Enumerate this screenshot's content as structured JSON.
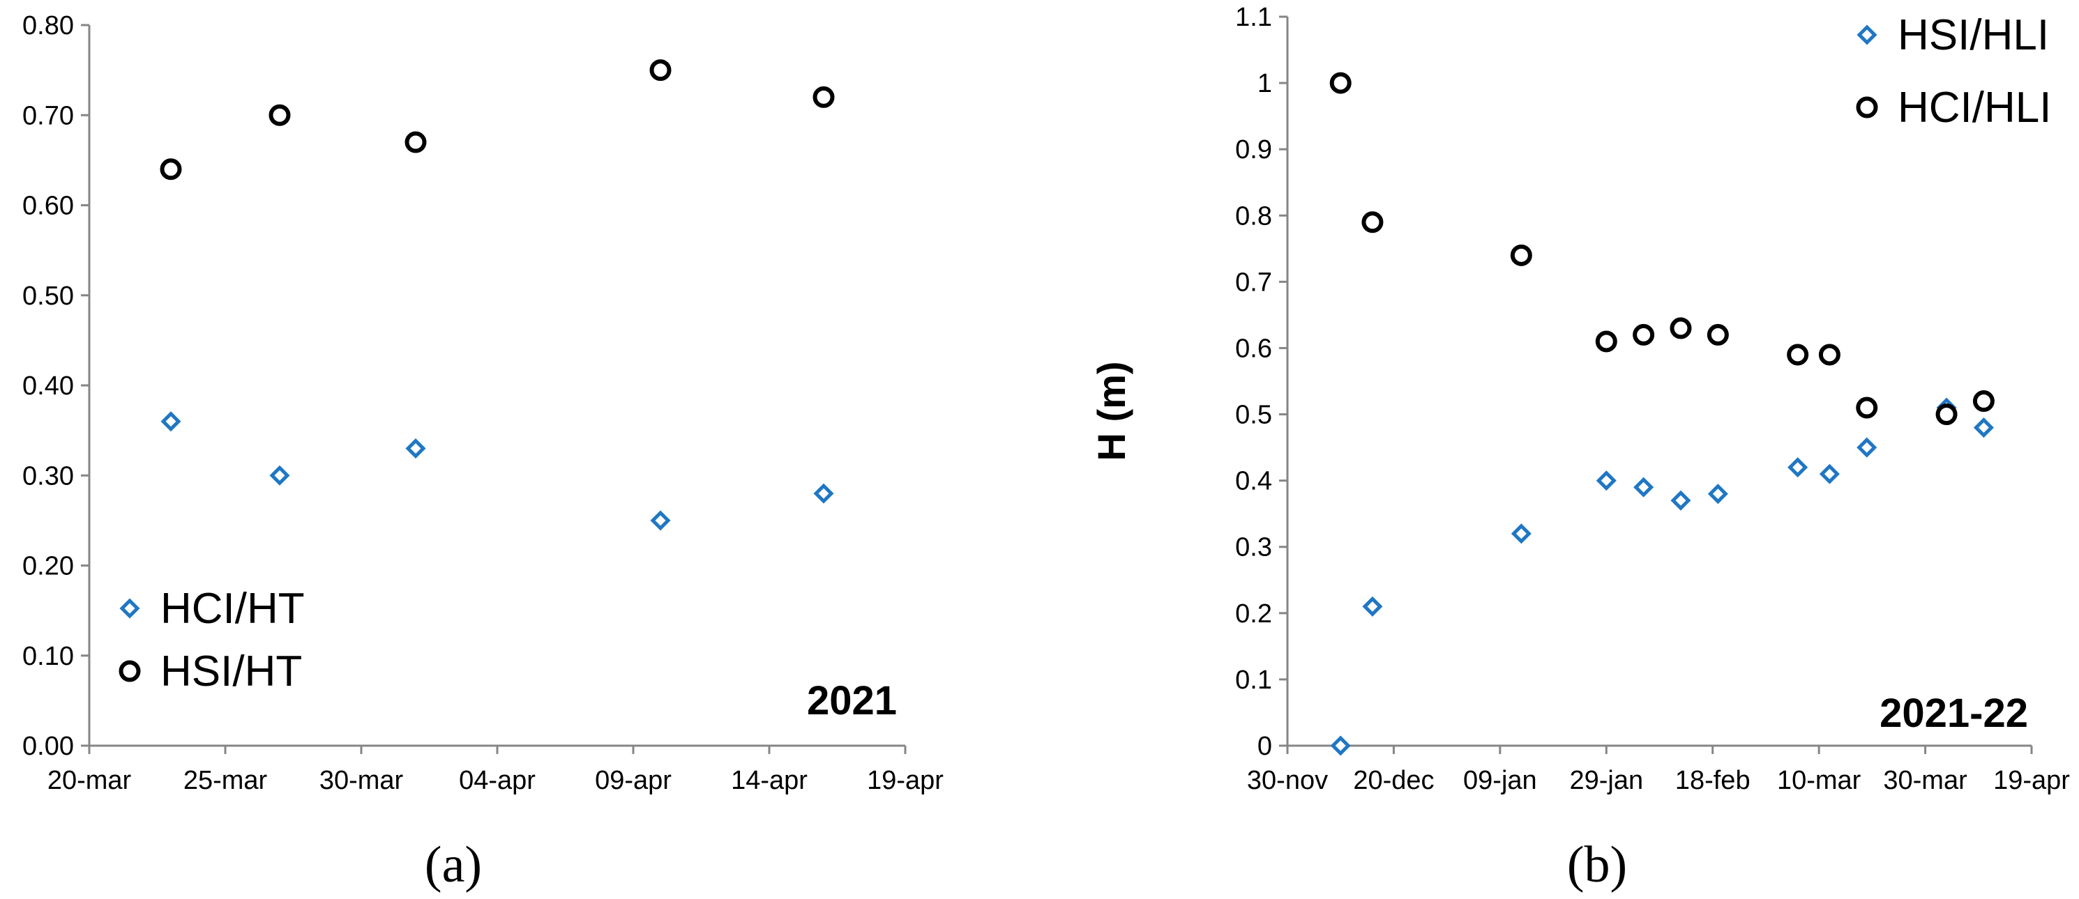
{
  "chart_data": [
    {
      "type": "scatter",
      "panel_label": "(a)",
      "year_label": "2021",
      "ylabel": "",
      "xlabel": "",
      "x_ticks": [
        "20-mar",
        "25-mar",
        "30-mar",
        "04-apr",
        "09-apr",
        "14-apr",
        "19-apr"
      ],
      "x_range": [
        "2021-03-20",
        "2021-04-19"
      ],
      "y_ticks": [
        "0.00",
        "0.10",
        "0.20",
        "0.30",
        "0.40",
        "0.50",
        "0.60",
        "0.70",
        "0.80"
      ],
      "ylim": [
        0,
        0.8
      ],
      "legend_position": "bottom-left",
      "series": [
        {
          "name": "HCI/HT",
          "marker": "diamond",
          "color": "#1f77c4",
          "points": [
            {
              "x": "2021-03-23",
              "y": 0.36
            },
            {
              "x": "2021-03-27",
              "y": 0.3
            },
            {
              "x": "2021-04-01",
              "y": 0.33
            },
            {
              "x": "2021-04-10",
              "y": 0.25
            },
            {
              "x": "2021-04-16",
              "y": 0.28
            }
          ]
        },
        {
          "name": "HSI/HT",
          "marker": "circle",
          "color": "#000000",
          "points": [
            {
              "x": "2021-03-23",
              "y": 0.64
            },
            {
              "x": "2021-03-27",
              "y": 0.7
            },
            {
              "x": "2021-04-01",
              "y": 0.67
            },
            {
              "x": "2021-04-10",
              "y": 0.75
            },
            {
              "x": "2021-04-16",
              "y": 0.72
            }
          ]
        }
      ]
    },
    {
      "type": "scatter",
      "panel_label": "(b)",
      "year_label": "2021-22",
      "ylabel": "H (m)",
      "xlabel": "",
      "x_ticks": [
        "30-nov",
        "20-dec",
        "09-jan",
        "29-jan",
        "18-feb",
        "10-mar",
        "30-mar",
        "19-apr"
      ],
      "x_range": [
        "2021-11-30",
        "2022-04-19"
      ],
      "y_ticks": [
        "0",
        "0.1",
        "0.2",
        "0.3",
        "0.4",
        "0.5",
        "0.6",
        "0.7",
        "0.8",
        "0.9",
        "1",
        "1.1"
      ],
      "ylim": [
        0,
        1.1
      ],
      "legend_position": "top-right",
      "series": [
        {
          "name": "HSI/HLI",
          "marker": "diamond",
          "color": "#1f77c4",
          "points": [
            {
              "x": "2021-12-10",
              "y": 0.0
            },
            {
              "x": "2021-12-16",
              "y": 0.21
            },
            {
              "x": "2022-01-13",
              "y": 0.32
            },
            {
              "x": "2022-01-29",
              "y": 0.4
            },
            {
              "x": "2022-02-05",
              "y": 0.39
            },
            {
              "x": "2022-02-12",
              "y": 0.37
            },
            {
              "x": "2022-02-19",
              "y": 0.38
            },
            {
              "x": "2022-03-06",
              "y": 0.42
            },
            {
              "x": "2022-03-12",
              "y": 0.41
            },
            {
              "x": "2022-03-19",
              "y": 0.45
            },
            {
              "x": "2022-04-03",
              "y": 0.51
            },
            {
              "x": "2022-04-10",
              "y": 0.48
            }
          ]
        },
        {
          "name": "HCI/HLI",
          "marker": "circle",
          "color": "#000000",
          "points": [
            {
              "x": "2021-12-10",
              "y": 1.0
            },
            {
              "x": "2021-12-16",
              "y": 0.79
            },
            {
              "x": "2022-01-13",
              "y": 0.74
            },
            {
              "x": "2022-01-29",
              "y": 0.61
            },
            {
              "x": "2022-02-05",
              "y": 0.62
            },
            {
              "x": "2022-02-12",
              "y": 0.63
            },
            {
              "x": "2022-02-19",
              "y": 0.62
            },
            {
              "x": "2022-03-06",
              "y": 0.59
            },
            {
              "x": "2022-03-12",
              "y": 0.59
            },
            {
              "x": "2022-03-19",
              "y": 0.51
            },
            {
              "x": "2022-04-03",
              "y": 0.5
            },
            {
              "x": "2022-04-10",
              "y": 0.52
            }
          ]
        }
      ]
    }
  ]
}
